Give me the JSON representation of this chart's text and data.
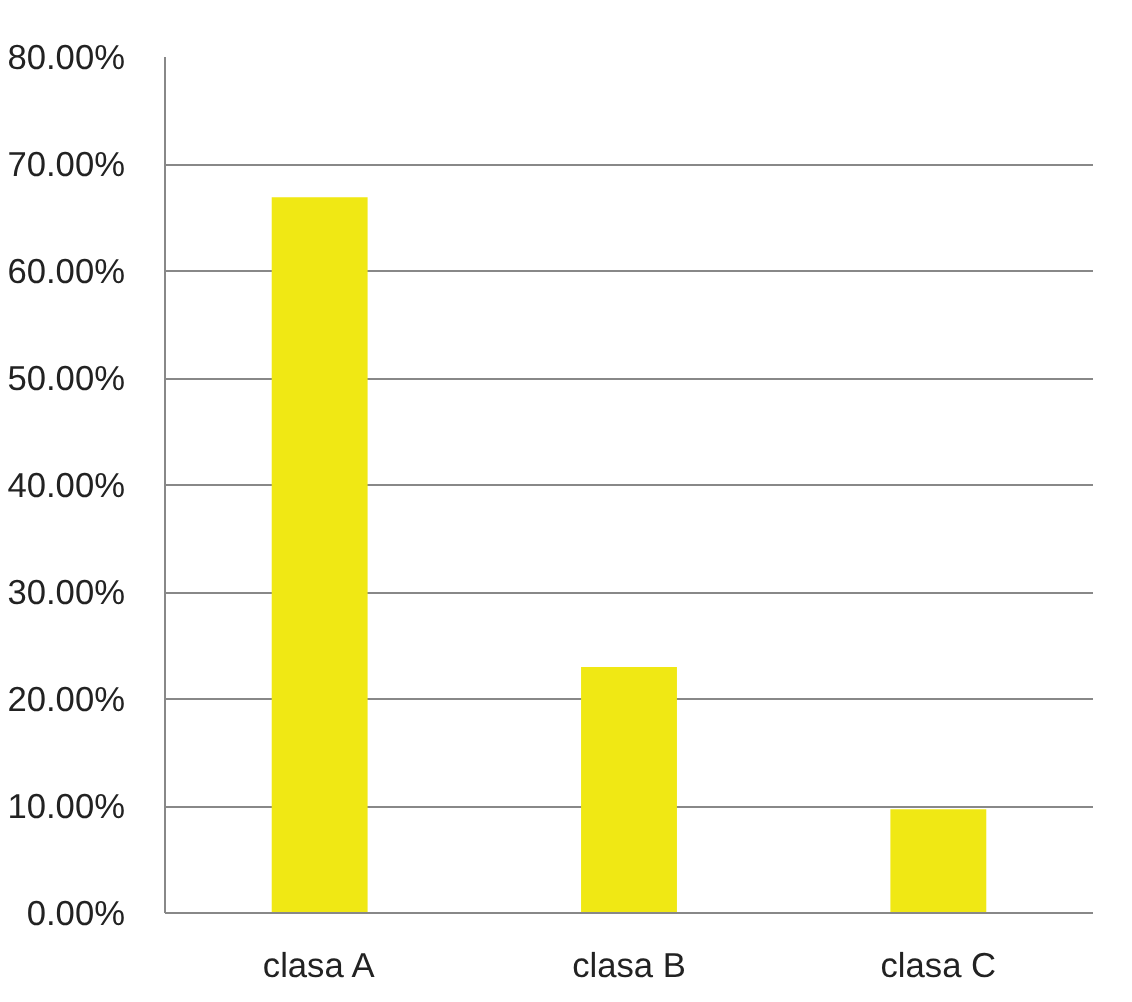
{
  "chart_data": {
    "type": "bar",
    "categories": [
      "clasa A",
      "clasa B",
      "clasa C"
    ],
    "values": [
      66.9,
      23.0,
      9.7
    ],
    "color": "#f0e814",
    "ylim": [
      0,
      80
    ],
    "yticks": [
      {
        "value": 0,
        "label": "0.00%"
      },
      {
        "value": 10,
        "label": "10.00%"
      },
      {
        "value": 20,
        "label": "20.00%"
      },
      {
        "value": 30,
        "label": "30.00%"
      },
      {
        "value": 40,
        "label": "40.00%"
      },
      {
        "value": 50,
        "label": "50.00%"
      },
      {
        "value": 60,
        "label": "60.00%"
      },
      {
        "value": 70,
        "label": "70.00%"
      },
      {
        "value": 80,
        "label": "80.00%"
      }
    ],
    "grid": "y"
  }
}
